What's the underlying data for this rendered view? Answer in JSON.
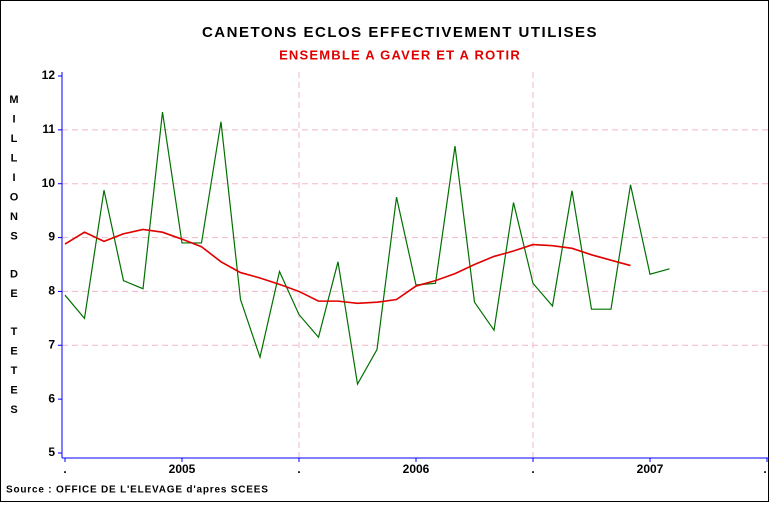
{
  "chart_data": {
    "type": "line",
    "title": "CANETONS ECLOS EFFECTIVEMENT UTILISES",
    "subtitle": "ENSEMBLE A GAVER ET A ROTIR",
    "y_label": "MILLIONS DE TETES",
    "source": "Source : OFFICE DE L'ELEVAGE d'apres SCEES",
    "x": [
      0,
      1,
      2,
      3,
      4,
      5,
      6,
      7,
      8,
      9,
      10,
      11,
      12,
      13,
      14,
      15,
      16,
      17,
      18,
      19,
      20,
      21,
      22,
      23,
      24,
      25,
      26,
      27,
      28,
      29,
      30,
      31
    ],
    "xlim": [
      0,
      36
    ],
    "xticks": [
      {
        "value": 0,
        "label": "."
      },
      {
        "value": 6,
        "label": "2005"
      },
      {
        "value": 12,
        "label": "."
      },
      {
        "value": 18,
        "label": "2006"
      },
      {
        "value": 24,
        "label": "."
      },
      {
        "value": 30,
        "label": "2007"
      },
      {
        "value": 36,
        "label": "."
      }
    ],
    "xgrid": [
      12,
      24
    ],
    "ylim": [
      5,
      12
    ],
    "yticks": [
      5,
      6,
      7,
      8,
      9,
      10,
      11,
      12
    ],
    "ygrid": [
      7,
      8,
      9,
      10,
      11
    ],
    "series": [
      {
        "name": "monthly",
        "color": "#007000",
        "values": [
          7.93,
          7.5,
          9.88,
          8.2,
          8.05,
          11.33,
          8.9,
          8.9,
          11.15,
          7.85,
          6.78,
          8.37,
          7.57,
          7.15,
          8.55,
          6.28,
          6.92,
          9.75,
          8.12,
          8.15,
          10.7,
          7.8,
          7.28,
          9.65,
          8.15,
          7.73,
          9.87,
          7.67,
          7.67,
          9.98,
          8.32,
          8.42
        ]
      },
      {
        "name": "trend",
        "color": "#e00000",
        "values": [
          8.88,
          9.1,
          8.93,
          9.07,
          9.15,
          9.1,
          8.97,
          8.83,
          8.55,
          8.35,
          8.25,
          8.13,
          8.0,
          7.82,
          7.82,
          7.78,
          7.8,
          7.85,
          8.1,
          8.2,
          8.33,
          8.5,
          8.65,
          8.75,
          8.87,
          8.85,
          8.8,
          8.68,
          8.58,
          8.48,
          null,
          null
        ]
      }
    ]
  }
}
